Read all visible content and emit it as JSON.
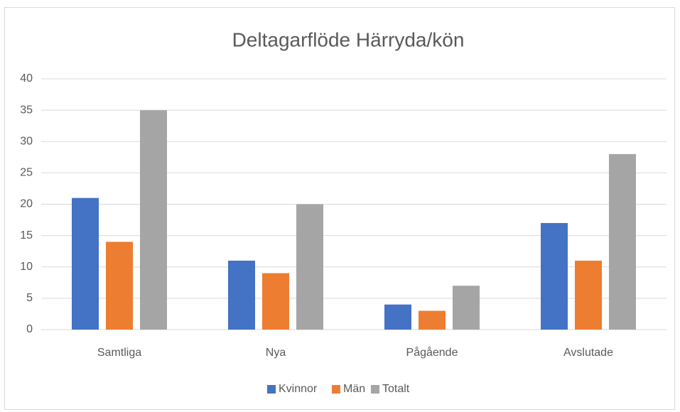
{
  "chart_data": {
    "type": "bar",
    "title": "Deltagarflöde Härryda/kön",
    "categories": [
      "Samtliga",
      "Nya",
      "Pågående",
      "Avslutade"
    ],
    "series": [
      {
        "name": "Kvinnor",
        "color": "#4472c4",
        "values": [
          21,
          11,
          4,
          17
        ]
      },
      {
        "name": "Män",
        "color": "#ed7d31",
        "values": [
          14,
          9,
          3,
          11
        ]
      },
      {
        "name": "Totalt",
        "color": "#a5a5a5",
        "values": [
          35,
          20,
          7,
          28
        ]
      }
    ],
    "ylim": [
      0,
      40
    ],
    "yticks": [
      0,
      5,
      10,
      15,
      20,
      25,
      30,
      35,
      40
    ],
    "grid": true,
    "legend": "bottom"
  }
}
